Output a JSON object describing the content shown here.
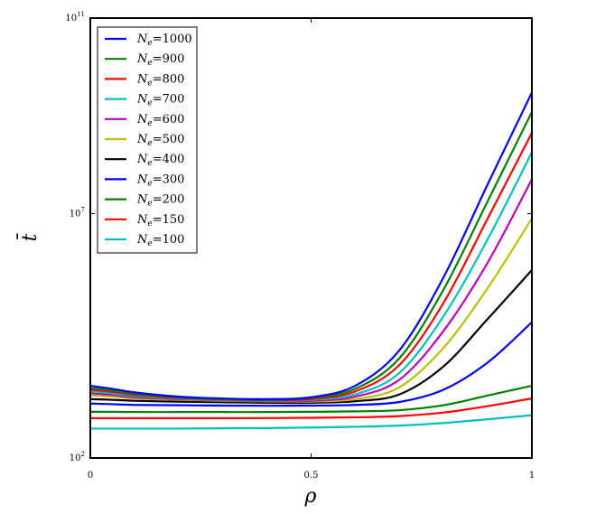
{
  "chart_data": {
    "type": "line",
    "title": "",
    "xlabel": "ρ",
    "ylabel": "t̄",
    "xlim": [
      0,
      1
    ],
    "ylim": [
      100,
      100000000000
    ],
    "yscale": "log",
    "grid": false,
    "legend_position": "top-left",
    "x_ticks": [
      {
        "value": 0,
        "label": "0"
      },
      {
        "value": 0.5,
        "label": "0.5"
      },
      {
        "value": 1,
        "label": "1"
      }
    ],
    "y_ticks": [
      {
        "value": 100,
        "base": "10",
        "exp": "2"
      },
      {
        "value": 10000000,
        "base": "10",
        "exp": "7"
      },
      {
        "value": 100000000000,
        "base": "10",
        "exp": "11"
      }
    ],
    "x": [
      0,
      0.05,
      0.1,
      0.2,
      0.3,
      0.4,
      0.5,
      0.6,
      0.7,
      0.8,
      0.9,
      1.0
    ],
    "series": [
      {
        "name": "N_e=1000",
        "label_base": "N",
        "label_sub": "e",
        "label_value": "=1000",
        "color": "#0000ff",
        "values": [
          3000,
          2600,
          2200,
          1800,
          1650,
          1600,
          1750,
          3000,
          16000,
          500000,
          40000000,
          3000000000
        ]
      },
      {
        "name": "N_e=900",
        "label_base": "N",
        "label_sub": "e",
        "label_value": "=900",
        "color": "#008000",
        "values": [
          2700,
          2400,
          2050,
          1750,
          1600,
          1550,
          1680,
          2600,
          11000,
          280000,
          18000000,
          1200000000
        ]
      },
      {
        "name": "N_e=800",
        "label_base": "N",
        "label_sub": "e",
        "label_value": "=800",
        "color": "#ff0000",
        "values": [
          2500,
          2250,
          1950,
          1700,
          1580,
          1520,
          1600,
          2300,
          8000,
          150000,
          8000000,
          450000000
        ]
      },
      {
        "name": "N_e=700",
        "label_base": "N",
        "label_sub": "e",
        "label_value": "=700",
        "color": "#00bfbf",
        "values": [
          2300,
          2100,
          1850,
          1650,
          1550,
          1480,
          1550,
          2000,
          5500,
          80000,
          3000000,
          180000000
        ]
      },
      {
        "name": "N_e=600",
        "label_base": "N",
        "label_sub": "e",
        "label_value": "=600",
        "color": "#bf00bf",
        "values": [
          2100,
          1950,
          1750,
          1600,
          1520,
          1450,
          1480,
          1800,
          4000,
          40000,
          1000000,
          50000000
        ]
      },
      {
        "name": "N_e=500",
        "label_base": "N",
        "label_sub": "e",
        "label_value": "=500",
        "color": "#bfbf00",
        "values": [
          1900,
          1800,
          1650,
          1550,
          1480,
          1430,
          1430,
          1600,
          2800,
          18000,
          300000,
          8000000
        ]
      },
      {
        "name": "N_e=400",
        "label_base": "N",
        "label_sub": "e",
        "label_value": "=400",
        "color": "#000000",
        "values": [
          1600,
          1550,
          1480,
          1420,
          1380,
          1350,
          1350,
          1450,
          2000,
          7500,
          70000,
          700000
        ]
      },
      {
        "name": "N_e=300",
        "label_base": "N",
        "label_sub": "e",
        "label_value": "=300",
        "color": "#0000ff",
        "values": [
          1300,
          1260,
          1220,
          1200,
          1180,
          1170,
          1180,
          1220,
          1400,
          2500,
          9000,
          60000
        ]
      },
      {
        "name": "N_e=200",
        "label_base": "N",
        "label_sub": "e",
        "label_value": "=200",
        "color": "#008000",
        "values": [
          880,
          880,
          870,
          870,
          870,
          870,
          880,
          900,
          950,
          1200,
          1900,
          3000
        ]
      },
      {
        "name": "N_e=150",
        "label_base": "N",
        "label_sub": "e",
        "label_value": "=150",
        "color": "#ff0000",
        "values": [
          650,
          650,
          650,
          650,
          650,
          655,
          665,
          680,
          720,
          850,
          1150,
          1650
        ]
      },
      {
        "name": "N_e=100",
        "label_base": "N",
        "label_sub": "e",
        "label_value": "=100",
        "color": "#00bfbf",
        "values": [
          400,
          400,
          400,
          400,
          405,
          410,
          420,
          435,
          460,
          520,
          620,
          750
        ]
      }
    ]
  }
}
